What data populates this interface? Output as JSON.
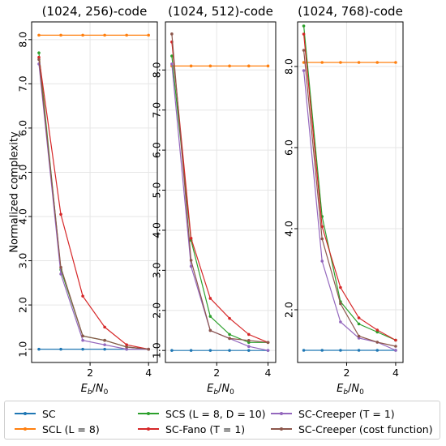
{
  "chart_data": [
    {
      "type": "line",
      "title": "(1024, 256)-code",
      "xlabel": "E_b/N_0",
      "ylabel": "Normalized complexity",
      "xlim": [
        0.0,
        4.3
      ],
      "ylim": [
        0.7,
        8.4
      ],
      "xticks": [
        2,
        4
      ],
      "yticks": [
        1.0,
        2.0,
        3.0,
        4.0,
        5.0,
        6.0,
        7.0,
        8.0
      ],
      "grid": true,
      "x": [
        0.25,
        1.0,
        1.75,
        2.5,
        3.25,
        4.0
      ],
      "series": [
        {
          "name": "SC",
          "values": [
            1.0,
            1.0,
            1.0,
            1.0,
            1.0,
            1.0
          ]
        },
        {
          "name": "SCL (L = 8)",
          "values": [
            8.1,
            8.1,
            8.1,
            8.1,
            8.1,
            8.1
          ]
        },
        {
          "name": "SCS (L = 8, D = 10)",
          "values": [
            7.7,
            2.8,
            1.3,
            1.2,
            1.05,
            1.0
          ]
        },
        {
          "name": "SC-Fano (T = 1)",
          "values": [
            7.6,
            4.05,
            2.2,
            1.5,
            1.1,
            1.0
          ]
        },
        {
          "name": "SC-Creeper (T = 1)",
          "values": [
            7.45,
            2.7,
            1.2,
            1.1,
            1.0,
            1.0
          ]
        },
        {
          "name": "SC-Creeper (cost function)",
          "values": [
            7.55,
            2.85,
            1.3,
            1.2,
            1.05,
            1.0
          ]
        }
      ]
    },
    {
      "type": "line",
      "title": "(1024, 512)-code",
      "xlabel": "E_b/N_0",
      "ylabel": "",
      "xlim": [
        0.0,
        4.3
      ],
      "ylim": [
        0.7,
        9.2
      ],
      "xticks": [
        2,
        4
      ],
      "yticks": [
        1.0,
        2.0,
        3.0,
        4.0,
        5.0,
        6.0,
        7.0,
        8.0
      ],
      "grid": true,
      "x": [
        0.25,
        1.0,
        1.75,
        2.5,
        3.25,
        4.0
      ],
      "series": [
        {
          "name": "SC",
          "values": [
            1.0,
            1.0,
            1.0,
            1.0,
            1.0,
            1.0
          ]
        },
        {
          "name": "SCL (L = 8)",
          "values": [
            8.1,
            8.1,
            8.1,
            8.1,
            8.1,
            8.1
          ]
        },
        {
          "name": "SCS (L = 8, D = 10)",
          "values": [
            8.35,
            3.75,
            1.85,
            1.4,
            1.2,
            1.2
          ]
        },
        {
          "name": "SC-Fano (T = 1)",
          "values": [
            8.7,
            3.8,
            2.3,
            1.8,
            1.4,
            1.2
          ]
        },
        {
          "name": "SC-Creeper (T = 1)",
          "values": [
            8.15,
            3.1,
            1.5,
            1.3,
            1.1,
            1.0
          ]
        },
        {
          "name": "SC-Creeper (cost function)",
          "values": [
            8.9,
            3.25,
            1.5,
            1.3,
            1.25,
            1.2
          ]
        }
      ]
    },
    {
      "type": "line",
      "title": "(1024, 768)-code",
      "xlabel": "E_b/N_0",
      "ylabel": "",
      "xlim": [
        0.0,
        4.3
      ],
      "ylim": [
        0.7,
        9.1
      ],
      "xticks": [
        2,
        4
      ],
      "yticks": [
        2.0,
        4.0,
        6.0,
        8.0
      ],
      "grid": true,
      "x": [
        0.25,
        1.0,
        1.75,
        2.5,
        3.25,
        4.0
      ],
      "series": [
        {
          "name": "SC",
          "values": [
            1.0,
            1.0,
            1.0,
            1.0,
            1.0,
            1.0
          ]
        },
        {
          "name": "SCL (L = 8)",
          "values": [
            8.1,
            8.1,
            8.1,
            8.1,
            8.1,
            8.1
          ]
        },
        {
          "name": "SCS (L = 8, D = 10)",
          "values": [
            9.0,
            4.3,
            2.2,
            1.65,
            1.45,
            1.25
          ]
        },
        {
          "name": "SC-Fano (T = 1)",
          "values": [
            8.8,
            4.05,
            2.55,
            1.8,
            1.5,
            1.25
          ]
        },
        {
          "name": "SC-Creeper (T = 1)",
          "values": [
            7.9,
            3.2,
            1.7,
            1.3,
            1.2,
            1.0
          ]
        },
        {
          "name": "SC-Creeper (cost function)",
          "values": [
            8.4,
            3.75,
            2.15,
            1.35,
            1.2,
            1.1
          ]
        }
      ]
    }
  ],
  "legend": {
    "placement": "bottom",
    "items": [
      {
        "label": "SC",
        "color": "#1f77b4"
      },
      {
        "label": "SCL (L = 8)",
        "color": "#ff7f0e"
      },
      {
        "label": "SCS (L = 8, D = 10)",
        "color": "#2ca02c"
      },
      {
        "label": "SC-Fano (T = 1)",
        "color": "#d62728"
      },
      {
        "label": "SC-Creeper (T = 1)",
        "color": "#9467bd"
      },
      {
        "label": "SC-Creeper (cost function)",
        "color": "#8c564b"
      }
    ]
  },
  "colors": {
    "SC": "#1f77b4",
    "SCL": "#ff7f0e",
    "SCS": "#2ca02c",
    "SC-Fano": "#d62728",
    "SC-Creeper": "#9467bd",
    "SC-Creeper-cost": "#8c564b",
    "grid": "#e6e6e6"
  }
}
